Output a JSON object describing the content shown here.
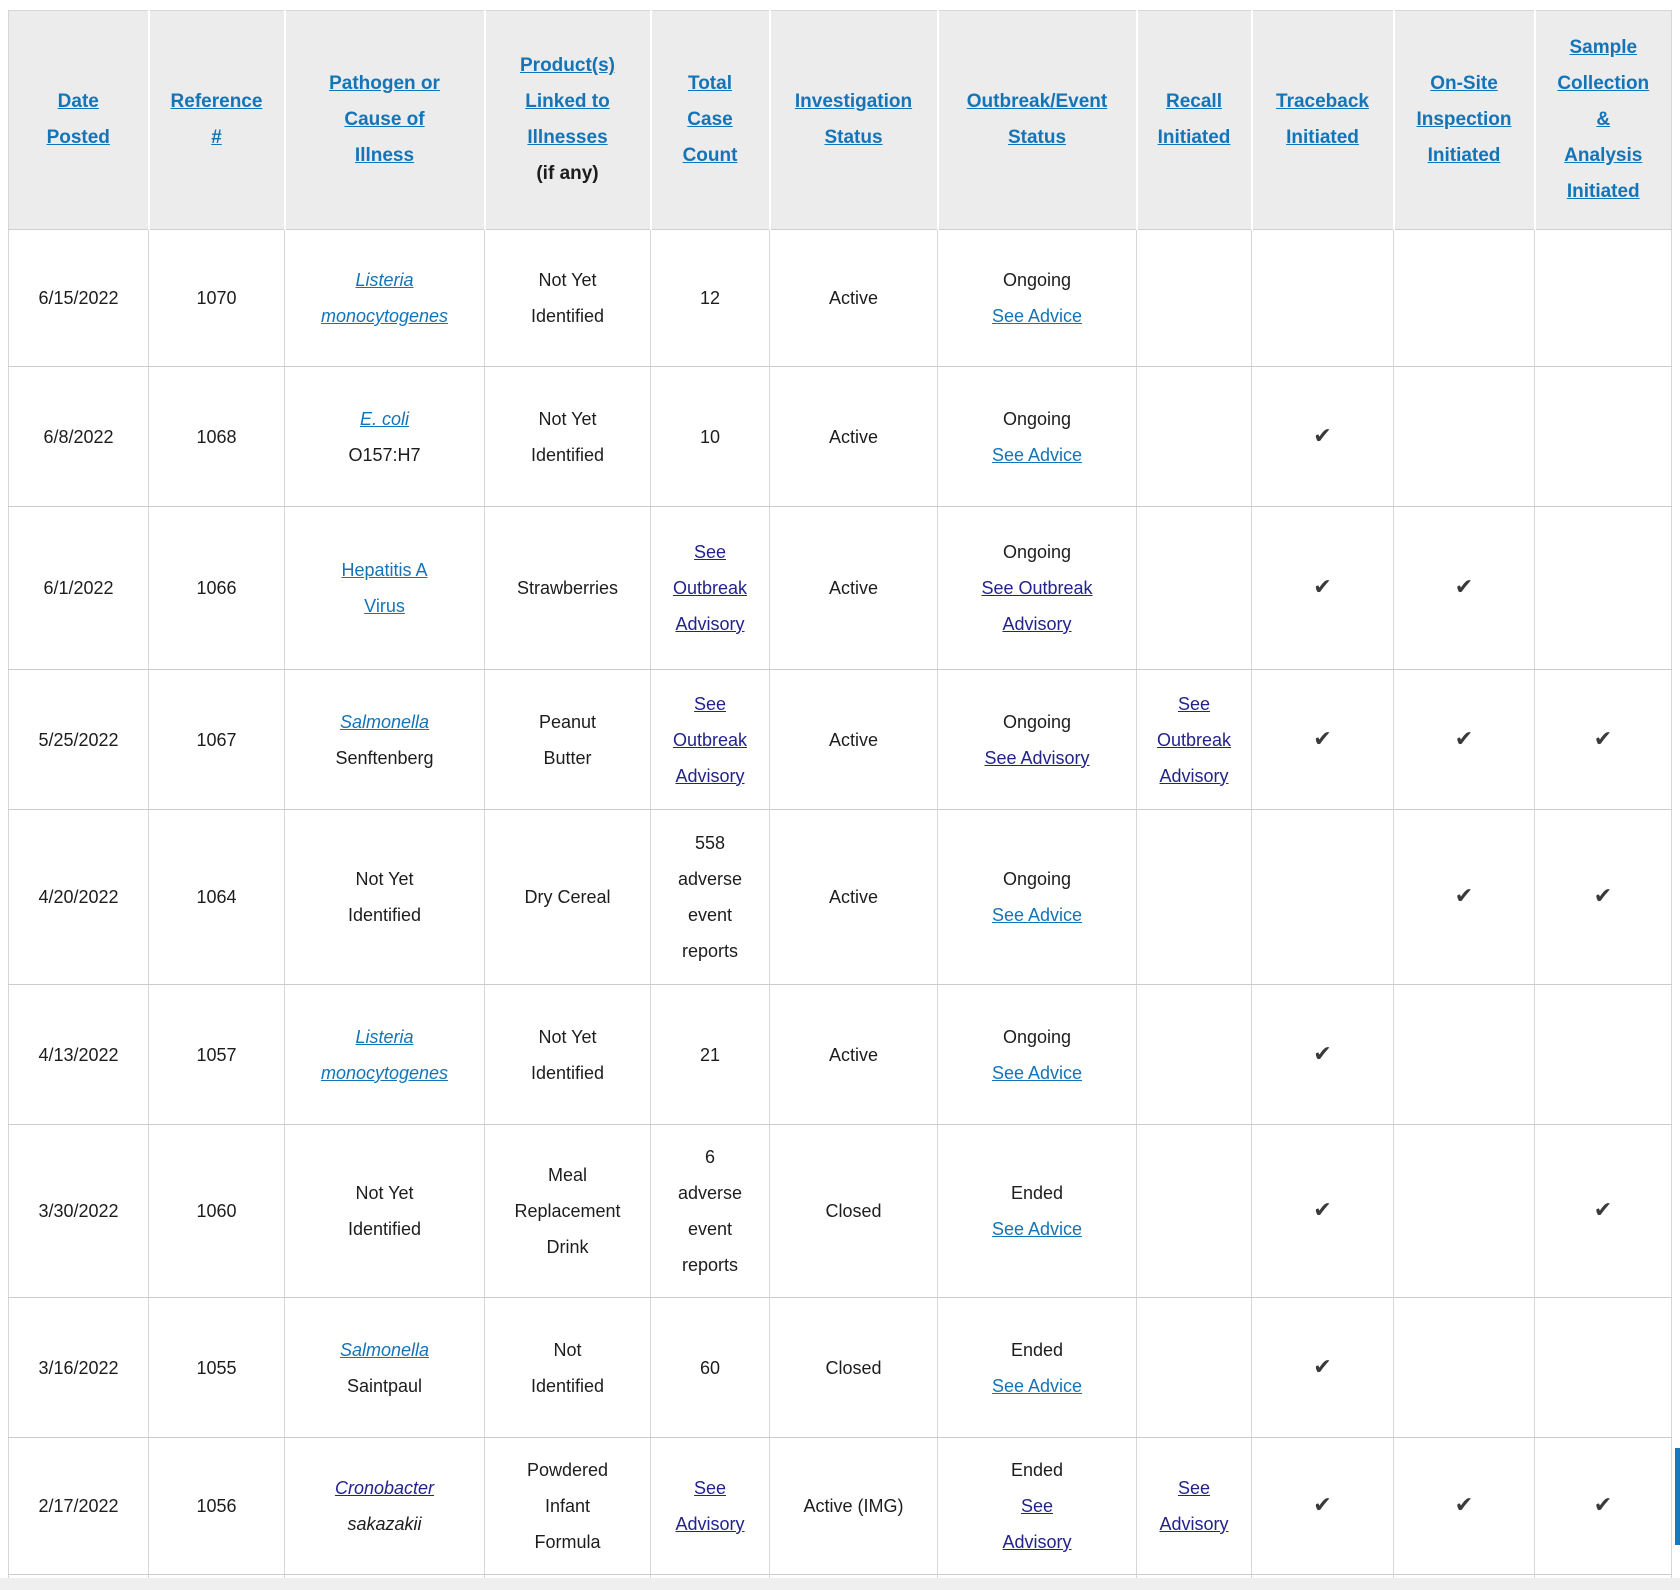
{
  "colors": {
    "link_blue": "#1474b8",
    "link_visited": "#23238c",
    "header_bg": "#ececec",
    "border_gray": "#d7d7d7",
    "text": "#1d1d1d",
    "check": "#3a3a3a",
    "accent_bar": "#1878bd"
  },
  "icons": {
    "checkmark": "✔"
  },
  "table": {
    "columns": [
      {
        "key": "date-posted",
        "label": "Date\nPosted"
      },
      {
        "key": "reference-number",
        "label": "Reference\n#"
      },
      {
        "key": "pathogen",
        "label": "Pathogen or\nCause of\nIllness"
      },
      {
        "key": "product",
        "label": "Product(s)\nLinked to\nIllnesses",
        "note": "(if any)"
      },
      {
        "key": "total-case-count",
        "label": "Total\nCase\nCount"
      },
      {
        "key": "investigation-status",
        "label": "Investigation\nStatus"
      },
      {
        "key": "outbreak-event-status",
        "label": "Outbreak/Event\nStatus"
      },
      {
        "key": "recall-initiated",
        "label": "Recall\nInitiated"
      },
      {
        "key": "traceback-initiated",
        "label": "Traceback\nInitiated"
      },
      {
        "key": "onsite-inspection-initiated",
        "label": "On-Site\nInspection\nInitiated"
      },
      {
        "key": "sample-collection-initiated",
        "label": "Sample\nCollection\n&\nAnalysis\nInitiated"
      }
    ],
    "rows": [
      {
        "date": "6/15/2022",
        "ref": "1070",
        "pathogen": [
          {
            "t": "Listeria\nmonocytogenes",
            "k": "link-italic"
          }
        ],
        "product": [
          {
            "t": "Not Yet\nIdentified"
          }
        ],
        "total": [
          {
            "t": "12"
          }
        ],
        "investigation": [
          {
            "t": "Active"
          }
        ],
        "outbreak": [
          {
            "t": "Ongoing"
          },
          {
            "t": "See Advice",
            "k": "link"
          }
        ],
        "recall": [],
        "traceback": false,
        "onsite": false,
        "sample": false
      },
      {
        "date": "6/8/2022",
        "ref": "1068",
        "pathogen": [
          {
            "t": "E. coli",
            "k": "link-italic"
          },
          {
            "t": "O157:H7"
          }
        ],
        "product": [
          {
            "t": "Not Yet\nIdentified"
          }
        ],
        "total": [
          {
            "t": "10"
          }
        ],
        "investigation": [
          {
            "t": "Active"
          }
        ],
        "outbreak": [
          {
            "t": "Ongoing"
          },
          {
            "t": "See Advice",
            "k": "link"
          }
        ],
        "recall": [],
        "traceback": true,
        "onsite": false,
        "sample": false
      },
      {
        "date": "6/1/2022",
        "ref": "1066",
        "pathogen": [
          {
            "t": "Hepatitis A\nVirus",
            "k": "link"
          }
        ],
        "product": [
          {
            "t": "Strawberries"
          }
        ],
        "total": [
          {
            "t": "See\nOutbreak\nAdvisory",
            "k": "vlink"
          }
        ],
        "investigation": [
          {
            "t": "Active"
          }
        ],
        "outbreak": [
          {
            "t": "Ongoing"
          },
          {
            "t": "See Outbreak\nAdvisory",
            "k": "vlink"
          }
        ],
        "recall": [],
        "traceback": true,
        "onsite": true,
        "sample": false
      },
      {
        "date": "5/25/2022",
        "ref": "1067",
        "pathogen": [
          {
            "t": "Salmonella",
            "k": "link-italic"
          },
          {
            "t": "Senftenberg"
          }
        ],
        "product": [
          {
            "t": "Peanut\nButter"
          }
        ],
        "total": [
          {
            "t": "See\nOutbreak\nAdvisory",
            "k": "vlink"
          }
        ],
        "investigation": [
          {
            "t": "Active"
          }
        ],
        "outbreak": [
          {
            "t": "Ongoing"
          },
          {
            "t": "See Advisory",
            "k": "vlink"
          }
        ],
        "recall": [
          {
            "t": "See\nOutbreak\nAdvisory",
            "k": "vlink"
          }
        ],
        "traceback": true,
        "onsite": true,
        "sample": true
      },
      {
        "date": "4/20/2022",
        "ref": "1064",
        "pathogen": [
          {
            "t": "Not Yet\nIdentified"
          }
        ],
        "product": [
          {
            "t": "Dry Cereal"
          }
        ],
        "total": [
          {
            "t": "558\nadverse\nevent\nreports"
          }
        ],
        "investigation": [
          {
            "t": "Active"
          }
        ],
        "outbreak": [
          {
            "t": "Ongoing"
          },
          {
            "t": "See Advice",
            "k": "link"
          }
        ],
        "recall": [],
        "traceback": false,
        "onsite": true,
        "sample": true
      },
      {
        "date": "4/13/2022",
        "ref": "1057",
        "pathogen": [
          {
            "t": "Listeria\nmonocytogenes",
            "k": "link-italic"
          }
        ],
        "product": [
          {
            "t": "Not Yet\nIdentified"
          }
        ],
        "total": [
          {
            "t": "21"
          }
        ],
        "investigation": [
          {
            "t": "Active"
          }
        ],
        "outbreak": [
          {
            "t": "Ongoing"
          },
          {
            "t": "See Advice",
            "k": "link"
          }
        ],
        "recall": [],
        "traceback": true,
        "onsite": false,
        "sample": false
      },
      {
        "date": "3/30/2022",
        "ref": "1060",
        "pathogen": [
          {
            "t": "Not Yet\nIdentified"
          }
        ],
        "product": [
          {
            "t": "Meal\nReplacement\nDrink"
          }
        ],
        "total": [
          {
            "t": "6\nadverse\nevent\nreports"
          }
        ],
        "investigation": [
          {
            "t": "Closed"
          }
        ],
        "outbreak": [
          {
            "t": "Ended"
          },
          {
            "t": "See Advice",
            "k": "link"
          }
        ],
        "recall": [],
        "traceback": true,
        "onsite": false,
        "sample": true
      },
      {
        "date": "3/16/2022",
        "ref": "1055",
        "pathogen": [
          {
            "t": "Salmonella",
            "k": "link-italic"
          },
          {
            "t": "Saintpaul"
          }
        ],
        "product": [
          {
            "t": "Not\nIdentified"
          }
        ],
        "total": [
          {
            "t": "60"
          }
        ],
        "investigation": [
          {
            "t": "Closed"
          }
        ],
        "outbreak": [
          {
            "t": "Ended"
          },
          {
            "t": "See Advice",
            "k": "link"
          }
        ],
        "recall": [],
        "traceback": true,
        "onsite": false,
        "sample": false
      },
      {
        "date": "2/17/2022",
        "ref": "1056",
        "pathogen": [
          {
            "t": "Cronobacter",
            "k": "vlink-italic"
          },
          {
            "t": "sakazakii",
            "k": "italic"
          }
        ],
        "product": [
          {
            "t": "Powdered\nInfant\nFormula"
          }
        ],
        "total": [
          {
            "t": "See\nAdvisory",
            "k": "vlink"
          }
        ],
        "investigation": [
          {
            "t": "Active (IMG)"
          }
        ],
        "outbreak": [
          {
            "t": "Ended"
          },
          {
            "t": "See\nAdvisory",
            "k": "vlink"
          }
        ],
        "recall": [
          {
            "t": "See\nAdvisory",
            "k": "vlink"
          }
        ],
        "traceback": true,
        "onsite": true,
        "sample": true
      }
    ]
  }
}
